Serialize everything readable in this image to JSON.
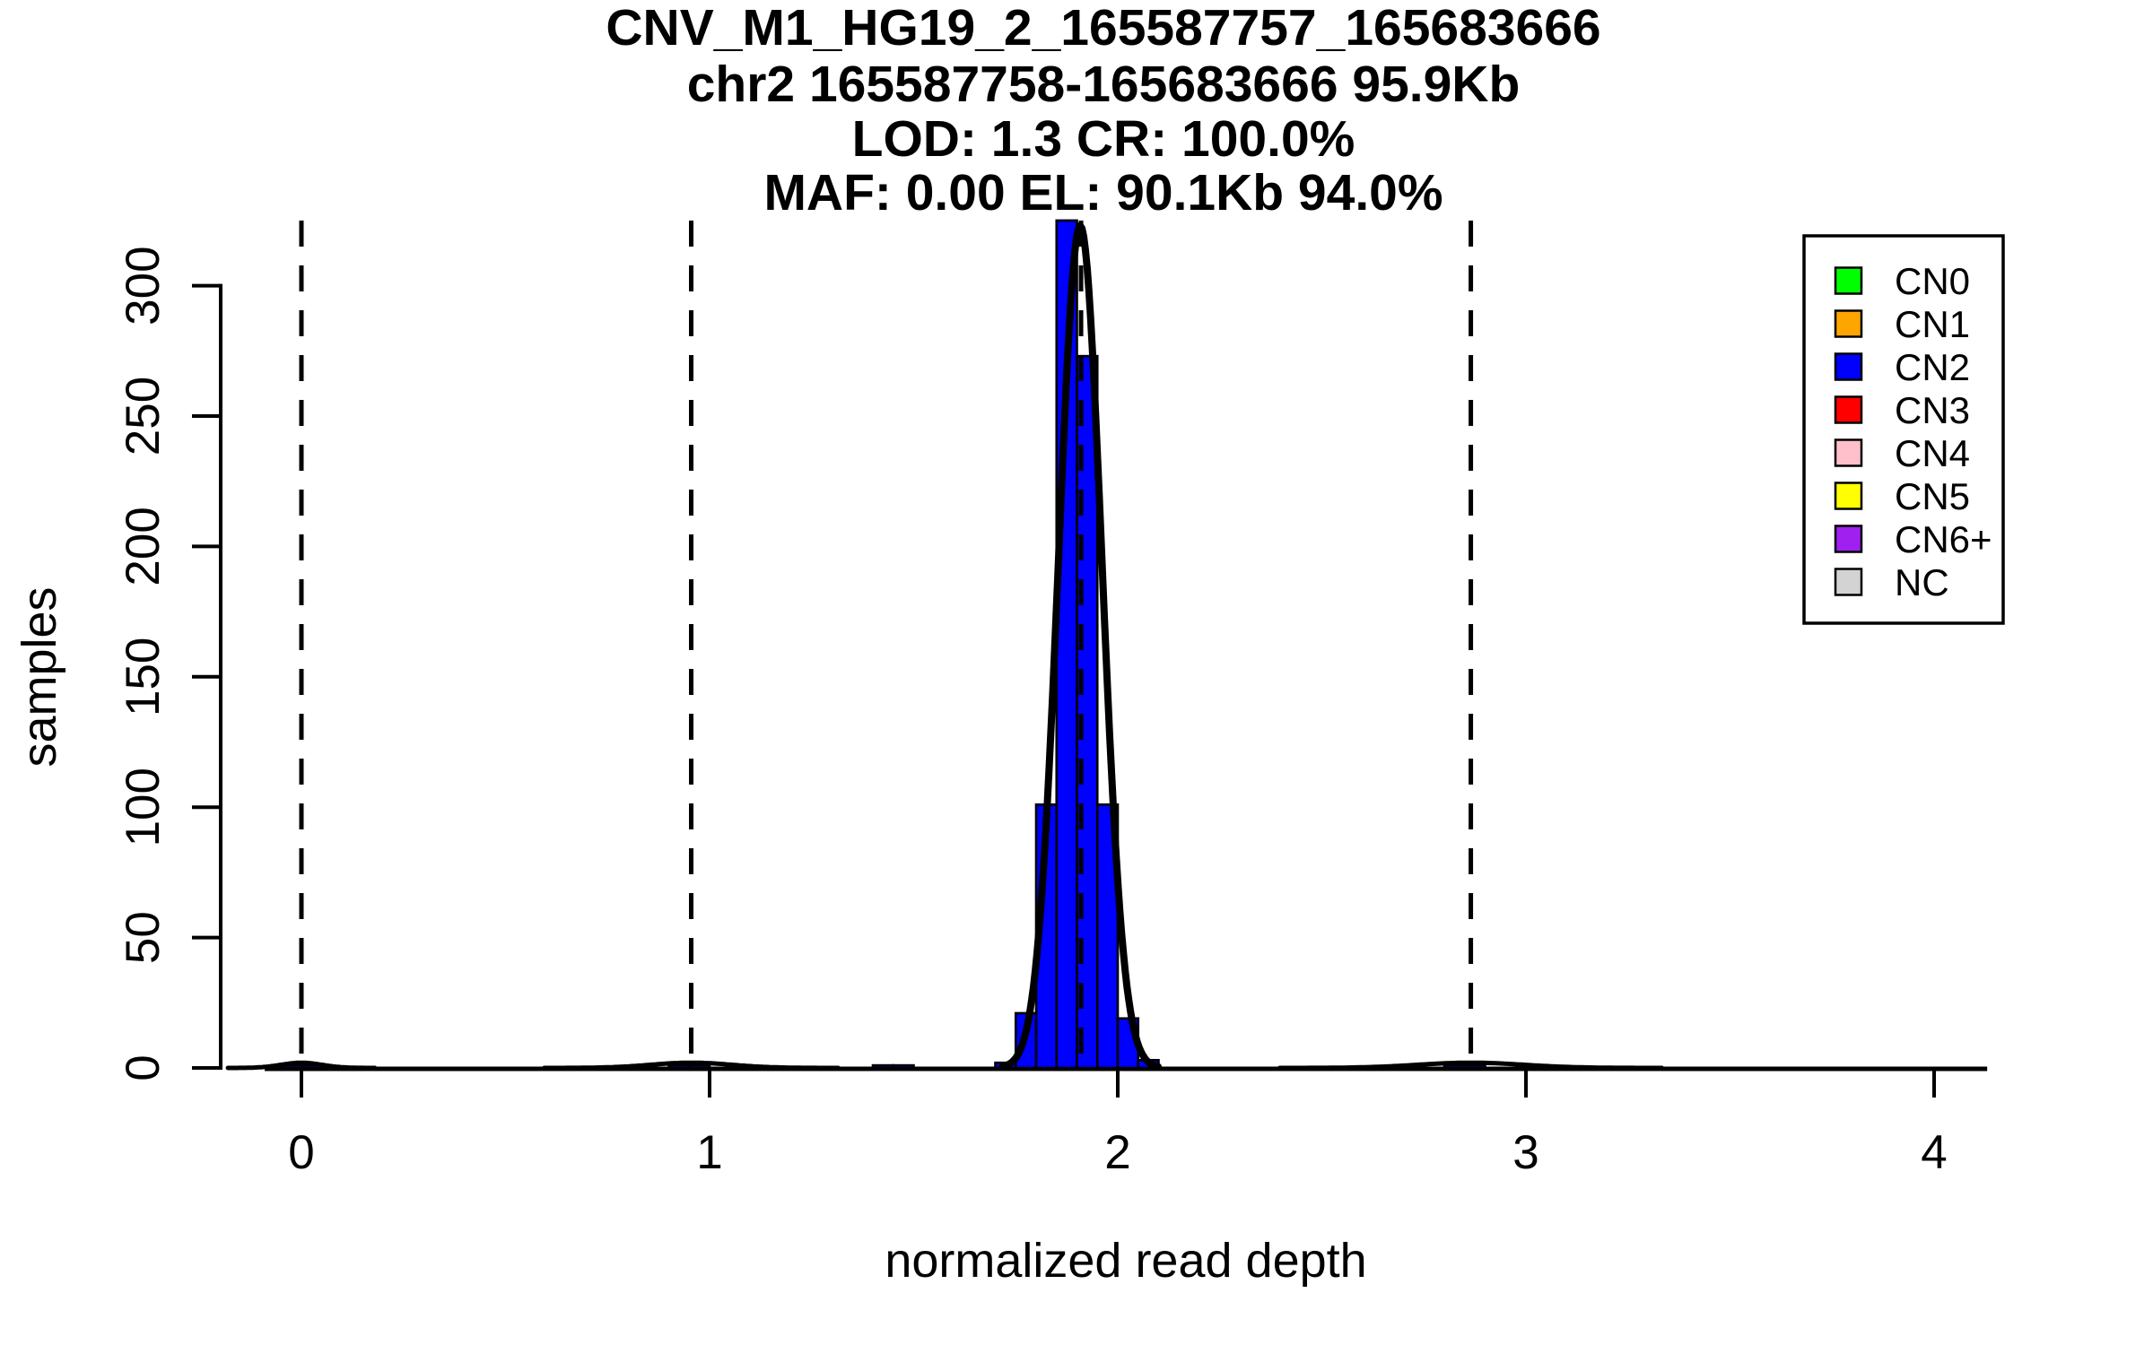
{
  "title": {
    "lines": [
      "CNV_M1_HG19_2_165587757_165683666",
      "chr2 165587758-165683666 95.9Kb",
      "LOD: 1.3 CR: 100.0%",
      "MAF: 0.00 EL: 90.1Kb 94.0%"
    ]
  },
  "axes": {
    "x": {
      "label": "normalized read depth"
    },
    "y": {
      "label": "samples"
    }
  },
  "colors": {
    "background": "#FFFFFF",
    "axis": "#000000",
    "text": "#000000",
    "bar_fill": "#0000FF",
    "bar_border": "#000000",
    "fit_curve": "#000000",
    "dashed_line": "#000000",
    "legend_border": "#000000",
    "legend_background": "#FFFFFF"
  },
  "chart_data": {
    "type": "bar",
    "subtype": "histogram",
    "title": "CNV_M1_HG19_2_165587757_165683666",
    "subtitle": "chr2 165587758-165683666 95.9Kb LOD: 1.3 CR: 100.0% MAF: 0.00 EL: 90.1Kb 94.0%",
    "xlabel": "normalized read depth",
    "ylabel": "samples",
    "xlim": [
      -0.09,
      4.13
    ],
    "ylim": [
      0,
      325
    ],
    "x_ticks": [
      0,
      1,
      2,
      3,
      4
    ],
    "y_ticks": [
      0,
      50,
      100,
      150,
      200,
      250,
      300
    ],
    "grid": false,
    "bin_width": 0.05,
    "bins": [
      {
        "start": -0.05,
        "count": 1
      },
      {
        "start": 0.0,
        "count": 1
      },
      {
        "start": 0.9,
        "count": 1
      },
      {
        "start": 0.95,
        "count": 1
      },
      {
        "start": 1.4,
        "count": 1
      },
      {
        "start": 1.45,
        "count": 1
      },
      {
        "start": 1.7,
        "count": 2
      },
      {
        "start": 1.75,
        "count": 21
      },
      {
        "start": 1.8,
        "count": 101
      },
      {
        "start": 1.85,
        "count": 325
      },
      {
        "start": 1.9,
        "count": 273
      },
      {
        "start": 1.95,
        "count": 101
      },
      {
        "start": 2.0,
        "count": 19
      },
      {
        "start": 2.05,
        "count": 3
      },
      {
        "start": 2.8,
        "count": 1
      },
      {
        "start": 2.85,
        "count": 1
      }
    ],
    "fit_curves": [
      {
        "name": "CN2-fit",
        "mean": 1.908,
        "sd": 0.053,
        "amplitude": 323
      },
      {
        "name": "CN0-fit",
        "mean": 0.0,
        "sd": 0.05,
        "amplitude": 2
      },
      {
        "name": "CN1-fit",
        "mean": 0.955,
        "sd": 0.1,
        "amplitude": 2
      },
      {
        "name": "CN3-fit",
        "mean": 2.865,
        "sd": 0.13,
        "amplitude": 2
      }
    ],
    "dashed_lines_x": [
      0,
      0.955,
      1.91,
      2.865
    ],
    "legend": {
      "position": "top-right",
      "items": [
        {
          "label": "CN0",
          "color": "#00FF00"
        },
        {
          "label": "CN1",
          "color": "#FFA500"
        },
        {
          "label": "CN2",
          "color": "#0000FF"
        },
        {
          "label": "CN3",
          "color": "#FF0000"
        },
        {
          "label": "CN4",
          "color": "#FFC0CB"
        },
        {
          "label": "CN5",
          "color": "#FFFF00"
        },
        {
          "label": "CN6+",
          "color": "#A020F0"
        },
        {
          "label": "NC",
          "color": "#D3D3D3"
        }
      ]
    }
  }
}
